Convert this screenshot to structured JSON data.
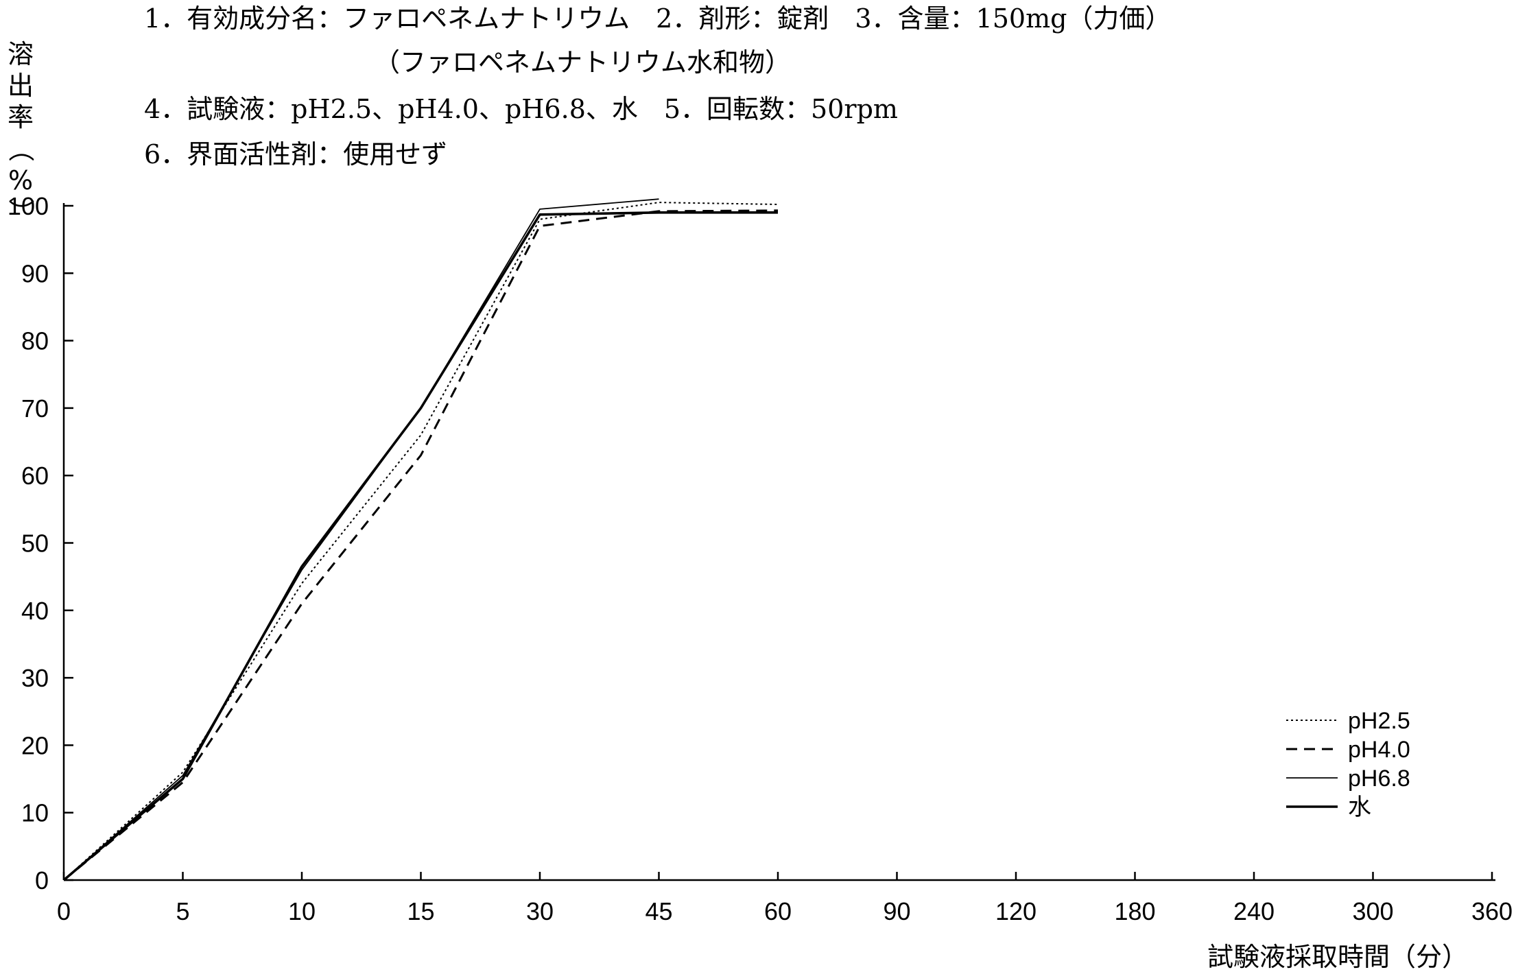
{
  "header": {
    "line1": "1．有効成分名：ファロペネムナトリウム　2．剤形：錠剤　3．含量：150mg（力価）",
    "line2": "（ファロペネムナトリウム水和物）",
    "line3": "4．試験液：pH2.5、pH4.0、pH6.8、水　5．回転数：50rpm",
    "line4": "6．界面活性剤：使用せず"
  },
  "chart_data": {
    "type": "line",
    "title": "",
    "xlabel": "試験液採取時間（分）",
    "ylabel": "溶出率（%）",
    "ylabel_chars": [
      "溶",
      "出",
      "率",
      "（",
      "%",
      "）"
    ],
    "x": [
      0,
      5,
      10,
      15,
      30,
      45,
      60,
      90,
      120,
      180,
      240,
      300,
      360
    ],
    "x_tick_labels": [
      "0",
      "5",
      "10",
      "15",
      "30",
      "45",
      "60",
      "90",
      "120",
      "180",
      "240",
      "300",
      "360"
    ],
    "x_scale": "categorical (equally spaced sampling times)",
    "y_ticks": [
      0,
      10,
      20,
      30,
      40,
      50,
      60,
      70,
      80,
      90,
      100
    ],
    "ylim": [
      0,
      100
    ],
    "grid": false,
    "legend_position": "bottom-right",
    "series": [
      {
        "name": "pH2.5",
        "style": "dotted",
        "x": [
          0,
          5,
          10,
          15,
          30,
          45,
          60
        ],
        "values": [
          0,
          16,
          44,
          66,
          98,
          100.5,
          100.2
        ]
      },
      {
        "name": "pH4.0",
        "style": "dashed",
        "x": [
          0,
          5,
          10,
          15,
          30,
          45,
          60
        ],
        "values": [
          0,
          14.5,
          41,
          63,
          97,
          99.2,
          99.3
        ]
      },
      {
        "name": "pH6.8",
        "style": "thin-solid",
        "x": [
          0,
          5,
          10,
          15,
          30,
          45
        ],
        "values": [
          0,
          15.5,
          46,
          70,
          99.5,
          101
        ]
      },
      {
        "name": "水",
        "style": "thick-solid",
        "x": [
          0,
          5,
          10,
          15,
          30,
          45,
          60
        ],
        "values": [
          0,
          15,
          46.5,
          70,
          98.7,
          99,
          99
        ]
      }
    ]
  }
}
